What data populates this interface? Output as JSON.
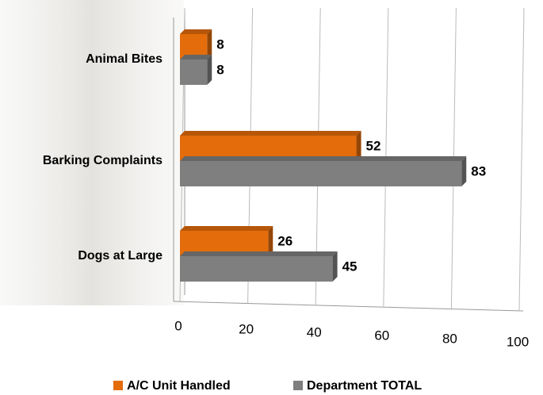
{
  "chart_data": {
    "type": "bar",
    "orientation": "horizontal",
    "categories": [
      "Animal Bites",
      "Barking Complaints",
      "Dogs at Large"
    ],
    "series": [
      {
        "name": "A/C Unit Handled",
        "color": "#e46c0a",
        "values": [
          8,
          52,
          26
        ]
      },
      {
        "name": "Department TOTAL",
        "color": "#7f7f7f",
        "values": [
          8,
          83,
          45
        ]
      }
    ],
    "xlim": [
      0,
      100
    ],
    "xticks": [
      0,
      20,
      40,
      60,
      80,
      100
    ],
    "grid": true,
    "legend": "bottom"
  }
}
